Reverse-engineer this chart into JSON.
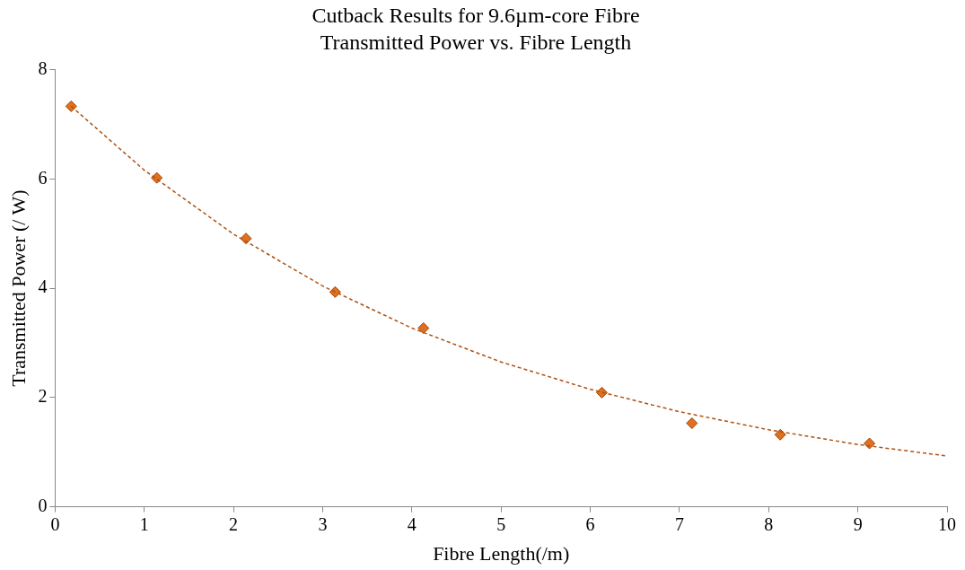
{
  "chart_data": {
    "type": "scatter",
    "title": "Cutback Results for 9.6µm-core Fibre",
    "subtitle": "Transmitted Power vs. Fibre Length",
    "xlabel": "Fibre Length(/m)",
    "ylabel": "Transmitted Power (/ W)",
    "xlim": [
      0,
      10
    ],
    "xticks": [
      0,
      1,
      2,
      3,
      4,
      5,
      6,
      7,
      8,
      9,
      10
    ],
    "ylim": [
      0,
      8
    ],
    "yticks": [
      0,
      2,
      4,
      6,
      8
    ],
    "grid": false,
    "legend": false,
    "series": [
      {
        "type": "scatter",
        "color": "#e07020",
        "marker": "diamond",
        "x": [
          0.18,
          1.14,
          2.14,
          3.14,
          4.13,
          6.13,
          7.14,
          8.13,
          9.13
        ],
        "values": [
          7.33,
          6.02,
          4.91,
          3.93,
          3.27,
          2.09,
          1.53,
          1.32,
          1.16
        ]
      },
      {
        "type": "line",
        "color": "#b05010",
        "marker": "none",
        "line_style": "dashed",
        "x": [
          0.18,
          1,
          2,
          3,
          4,
          5,
          6,
          7,
          8,
          9,
          10
        ],
        "values": [
          7.33,
          6.16,
          4.99,
          4.04,
          3.27,
          2.65,
          2.15,
          1.74,
          1.41,
          1.14,
          0.93
        ]
      }
    ]
  }
}
